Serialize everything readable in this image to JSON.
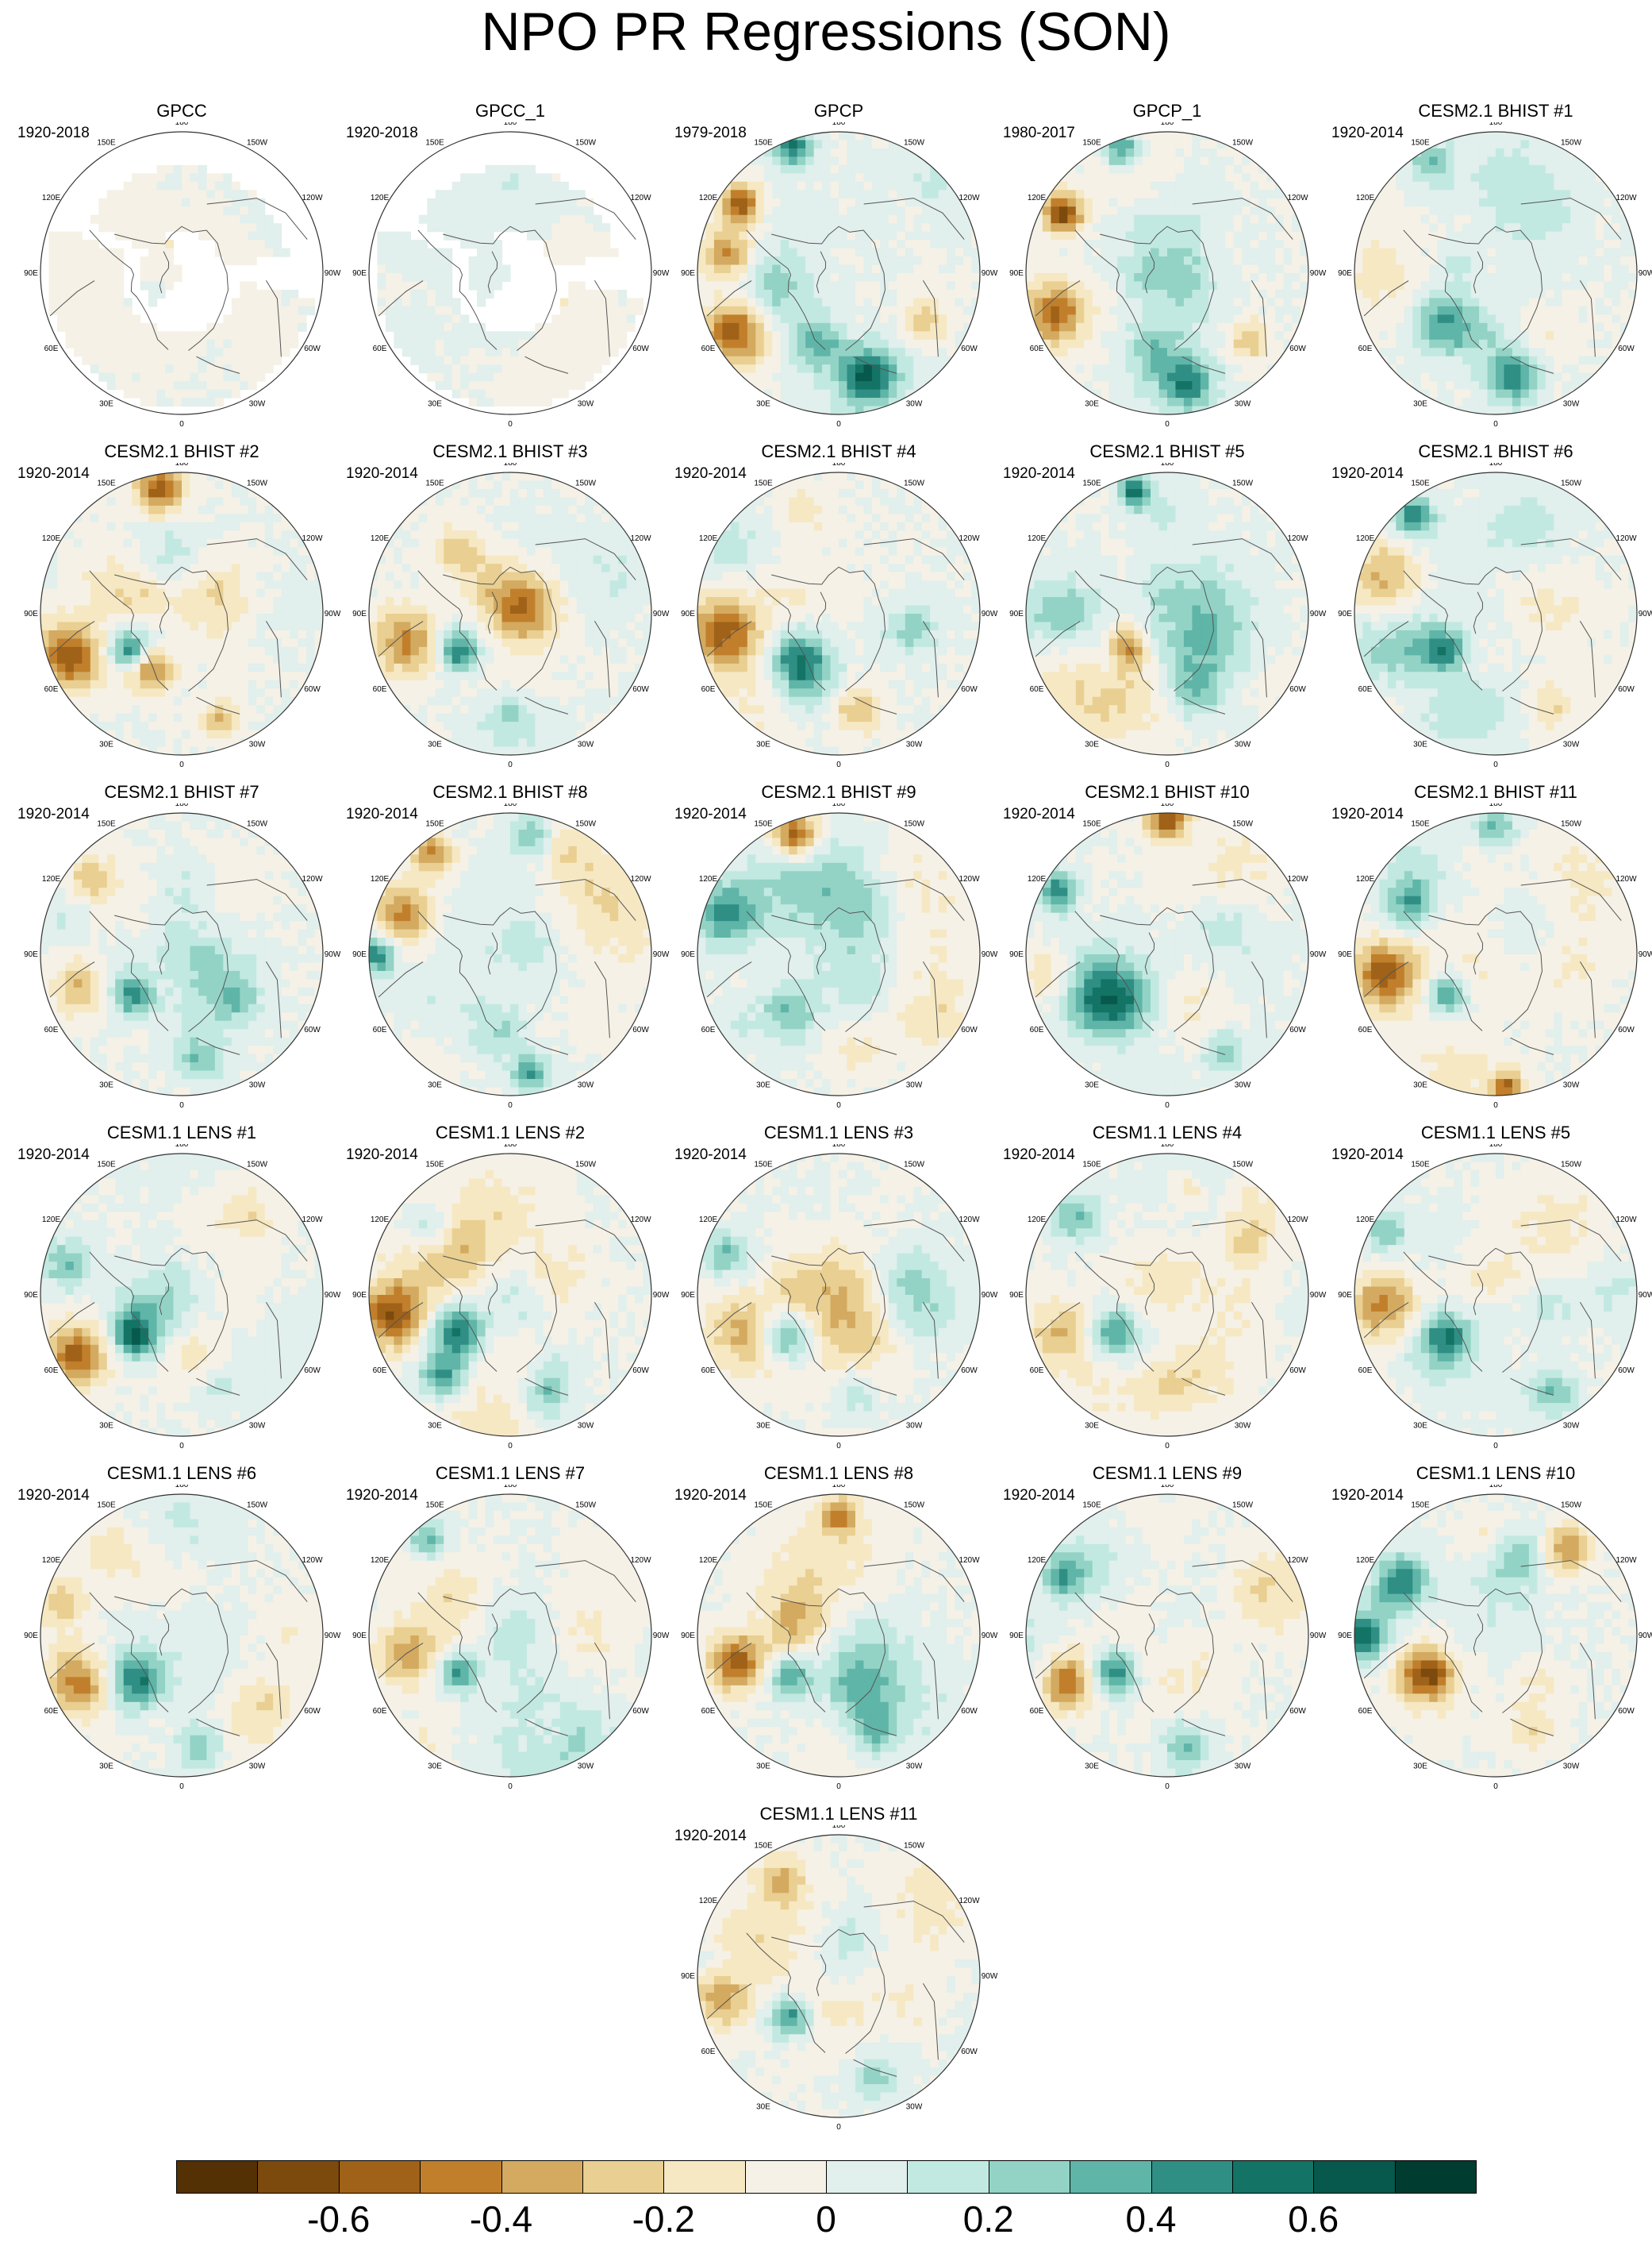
{
  "title": "NPO PR Regressions (SON)",
  "panels": [
    {
      "name": "GPCC",
      "period": "1920-2018",
      "mask": "gpcc",
      "seed": 11,
      "features": []
    },
    {
      "name": "GPCC_1",
      "period": "1920-2018",
      "mask": "gpcc",
      "seed": 12,
      "features": []
    },
    {
      "name": "GPCP",
      "period": "1979-2018",
      "mask": "none",
      "seed": 13,
      "features": [
        {
          "ang": -120,
          "rad": 0.85,
          "size": 0.16,
          "val": -0.55
        },
        {
          "ang": -80,
          "rad": 0.8,
          "size": 0.12,
          "val": -0.45
        },
        {
          "ang": -55,
          "rad": 0.85,
          "size": 0.1,
          "val": -0.6
        },
        {
          "ang": -20,
          "rad": 0.95,
          "size": 0.1,
          "val": 0.5
        },
        {
          "ang": 165,
          "rad": 0.75,
          "size": 0.12,
          "val": 0.45
        },
        {
          "ang": 120,
          "rad": 0.7,
          "size": 0.1,
          "val": -0.3
        },
        {
          "ang": -160,
          "rad": 0.5,
          "size": 0.15,
          "val": 0.25
        }
      ]
    },
    {
      "name": "GPCP_1",
      "period": "1980-2017",
      "mask": "none",
      "seed": 14,
      "features": [
        {
          "ang": -110,
          "rad": 0.85,
          "size": 0.16,
          "val": -0.5
        },
        {
          "ang": -60,
          "rad": 0.85,
          "size": 0.1,
          "val": -0.65
        },
        {
          "ang": -20,
          "rad": 0.95,
          "size": 0.1,
          "val": 0.5
        },
        {
          "ang": 170,
          "rad": 0.8,
          "size": 0.12,
          "val": 0.4
        },
        {
          "ang": 130,
          "rad": 0.75,
          "size": 0.1,
          "val": -0.3
        },
        {
          "ang": -170,
          "rad": 0.55,
          "size": 0.14,
          "val": 0.2
        }
      ]
    },
    {
      "name": "CESM2.1 BHIST #1",
      "period": "1920-2014",
      "mask": "none",
      "seed": 15,
      "features": [
        {
          "ang": -135,
          "rad": 0.5,
          "size": 0.16,
          "val": 0.4
        },
        {
          "ang": 170,
          "rad": 0.75,
          "size": 0.14,
          "val": 0.45
        },
        {
          "ang": -90,
          "rad": 0.8,
          "size": 0.2,
          "val": -0.15
        },
        {
          "ang": -30,
          "rad": 0.9,
          "size": 0.1,
          "val": 0.3
        }
      ]
    },
    {
      "name": "CESM2.1 BHIST #2",
      "period": "1920-2014",
      "mask": "none",
      "seed": 21,
      "features": [
        {
          "ang": -110,
          "rad": 0.85,
          "size": 0.16,
          "val": -0.5
        },
        {
          "ang": -150,
          "rad": 0.45,
          "size": 0.12,
          "val": -0.5
        },
        {
          "ang": -125,
          "rad": 0.45,
          "size": 0.1,
          "val": 0.5
        },
        {
          "ang": -10,
          "rad": 0.9,
          "size": 0.12,
          "val": -0.55
        },
        {
          "ang": 160,
          "rad": 0.8,
          "size": 0.1,
          "val": -0.3
        }
      ]
    },
    {
      "name": "CESM2.1 BHIST #3",
      "period": "1920-2014",
      "mask": "none",
      "seed": 22,
      "features": [
        {
          "ang": -105,
          "rad": 0.75,
          "size": 0.18,
          "val": -0.45
        },
        {
          "ang": -125,
          "rad": 0.45,
          "size": 0.1,
          "val": 0.5
        },
        {
          "ang": -40,
          "rad": 0.6,
          "size": 0.12,
          "val": -0.25
        },
        {
          "ang": 180,
          "rad": 0.7,
          "size": 0.1,
          "val": 0.2
        }
      ]
    },
    {
      "name": "CESM2.1 BHIST #4",
      "period": "1920-2014",
      "mask": "none",
      "seed": 23,
      "features": [
        {
          "ang": -100,
          "rad": 0.85,
          "size": 0.2,
          "val": -0.4
        },
        {
          "ang": -140,
          "rad": 0.45,
          "size": 0.15,
          "val": 0.5
        },
        {
          "ang": 170,
          "rad": 0.7,
          "size": 0.12,
          "val": -0.3
        },
        {
          "ang": 100,
          "rad": 0.55,
          "size": 0.12,
          "val": 0.25
        }
      ]
    },
    {
      "name": "CESM2.1 BHIST #5",
      "period": "1920-2014",
      "mask": "none",
      "seed": 24,
      "features": [
        {
          "ang": -90,
          "rad": 0.75,
          "size": 0.18,
          "val": 0.3
        },
        {
          "ang": -130,
          "rad": 0.35,
          "size": 0.1,
          "val": -0.45
        },
        {
          "ang": -15,
          "rad": 0.9,
          "size": 0.08,
          "val": 0.55
        },
        {
          "ang": 160,
          "rad": 0.6,
          "size": 0.12,
          "val": 0.25
        }
      ]
    },
    {
      "name": "CESM2.1 BHIST #6",
      "period": "1920-2014",
      "mask": "none",
      "seed": 25,
      "features": [
        {
          "ang": -70,
          "rad": 0.8,
          "size": 0.2,
          "val": -0.45
        },
        {
          "ang": -125,
          "rad": 0.45,
          "size": 0.1,
          "val": 0.45
        },
        {
          "ang": -40,
          "rad": 0.9,
          "size": 0.1,
          "val": 0.45
        },
        {
          "ang": 150,
          "rad": 0.75,
          "size": 0.12,
          "val": -0.2
        }
      ]
    },
    {
      "name": "CESM2.1 BHIST #7",
      "period": "1920-2014",
      "mask": "none",
      "seed": 31,
      "features": [
        {
          "ang": -110,
          "rad": 0.75,
          "size": 0.15,
          "val": -0.3
        },
        {
          "ang": -130,
          "rad": 0.45,
          "size": 0.1,
          "val": 0.45
        },
        {
          "ang": -50,
          "rad": 0.85,
          "size": 0.1,
          "val": -0.25
        },
        {
          "ang": 170,
          "rad": 0.75,
          "size": 0.12,
          "val": 0.3
        },
        {
          "ang": 130,
          "rad": 0.5,
          "size": 0.1,
          "val": 0.2
        }
      ]
    },
    {
      "name": "CESM2.1 BHIST #8",
      "period": "1920-2014",
      "mask": "none",
      "seed": 32,
      "features": [
        {
          "ang": -70,
          "rad": 0.8,
          "size": 0.15,
          "val": -0.45
        },
        {
          "ang": -35,
          "rad": 0.9,
          "size": 0.12,
          "val": -0.6
        },
        {
          "ang": -90,
          "rad": 0.95,
          "size": 0.1,
          "val": 0.5
        },
        {
          "ang": -170,
          "rad": 0.55,
          "size": 0.14,
          "val": 0.2
        },
        {
          "ang": 170,
          "rad": 0.85,
          "size": 0.1,
          "val": 0.4
        },
        {
          "ang": 10,
          "rad": 0.85,
          "size": 0.1,
          "val": 0.3
        }
      ]
    },
    {
      "name": "CESM2.1 BHIST #9",
      "period": "1920-2014",
      "mask": "none",
      "seed": 33,
      "features": [
        {
          "ang": -20,
          "rad": 0.9,
          "size": 0.12,
          "val": -0.6
        },
        {
          "ang": -70,
          "rad": 0.85,
          "size": 0.15,
          "val": 0.45
        },
        {
          "ang": -140,
          "rad": 0.55,
          "size": 0.14,
          "val": 0.3
        },
        {
          "ang": 170,
          "rad": 0.7,
          "size": 0.12,
          "val": -0.15
        }
      ]
    },
    {
      "name": "CESM2.1 BHIST #10",
      "period": "1920-2014",
      "mask": "none",
      "seed": 34,
      "features": [
        {
          "ang": -125,
          "rad": 0.55,
          "size": 0.18,
          "val": 0.55
        },
        {
          "ang": -100,
          "rad": 0.85,
          "size": 0.12,
          "val": -0.2
        },
        {
          "ang": 0,
          "rad": 0.95,
          "size": 0.1,
          "val": -0.6
        },
        {
          "ang": -60,
          "rad": 0.9,
          "size": 0.1,
          "val": 0.45
        },
        {
          "ang": 150,
          "rad": 0.8,
          "size": 0.12,
          "val": 0.3
        }
      ]
    },
    {
      "name": "CESM2.1 BHIST #11",
      "period": "1920-2014",
      "mask": "none",
      "seed": 35,
      "features": [
        {
          "ang": -100,
          "rad": 0.8,
          "size": 0.16,
          "val": -0.55
        },
        {
          "ang": -130,
          "rad": 0.45,
          "size": 0.1,
          "val": 0.45
        },
        {
          "ang": -60,
          "rad": 0.7,
          "size": 0.12,
          "val": 0.35
        },
        {
          "ang": 175,
          "rad": 0.95,
          "size": 0.08,
          "val": -0.5
        },
        {
          "ang": 0,
          "rad": 0.9,
          "size": 0.1,
          "val": 0.3
        }
      ]
    },
    {
      "name": "CESM1.1 LENS #1",
      "period": "1920-2014",
      "mask": "none",
      "seed": 41,
      "features": [
        {
          "ang": -120,
          "rad": 0.85,
          "size": 0.15,
          "val": -0.55
        },
        {
          "ang": -130,
          "rad": 0.45,
          "size": 0.1,
          "val": 0.5
        },
        {
          "ang": -75,
          "rad": 0.85,
          "size": 0.12,
          "val": 0.3
        },
        {
          "ang": 160,
          "rad": 0.7,
          "size": 0.12,
          "val": 0.2
        }
      ]
    },
    {
      "name": "CESM1.1 LENS #2",
      "period": "1920-2014",
      "mask": "none",
      "seed": 42,
      "features": [
        {
          "ang": -100,
          "rad": 0.85,
          "size": 0.16,
          "val": -0.6
        },
        {
          "ang": -125,
          "rad": 0.45,
          "size": 0.14,
          "val": 0.55
        },
        {
          "ang": -140,
          "rad": 0.75,
          "size": 0.12,
          "val": 0.4
        },
        {
          "ang": -50,
          "rad": 0.75,
          "size": 0.12,
          "val": 0.3
        },
        {
          "ang": 160,
          "rad": 0.75,
          "size": 0.12,
          "val": 0.3
        }
      ]
    },
    {
      "name": "CESM1.1 LENS #3",
      "period": "1920-2014",
      "mask": "none",
      "seed": 43,
      "features": [
        {
          "ang": -110,
          "rad": 0.75,
          "size": 0.18,
          "val": -0.3
        },
        {
          "ang": -130,
          "rad": 0.45,
          "size": 0.14,
          "val": 0.45
        },
        {
          "ang": -70,
          "rad": 0.85,
          "size": 0.12,
          "val": 0.3
        },
        {
          "ang": 170,
          "rad": 0.7,
          "size": 0.12,
          "val": 0.2
        }
      ]
    },
    {
      "name": "CESM1.1 LENS #4",
      "period": "1920-2014",
      "mask": "none",
      "seed": 44,
      "features": [
        {
          "ang": -110,
          "rad": 0.8,
          "size": 0.16,
          "val": -0.3
        },
        {
          "ang": -125,
          "rad": 0.45,
          "size": 0.12,
          "val": 0.45
        },
        {
          "ang": -50,
          "rad": 0.85,
          "size": 0.12,
          "val": 0.3
        },
        {
          "ang": 10,
          "rad": 0.75,
          "size": 0.1,
          "val": -0.2
        }
      ]
    },
    {
      "name": "CESM1.1 LENS #5",
      "period": "1920-2014",
      "mask": "none",
      "seed": 45,
      "features": [
        {
          "ang": -95,
          "rad": 0.85,
          "size": 0.16,
          "val": -0.35
        },
        {
          "ang": -130,
          "rad": 0.45,
          "size": 0.12,
          "val": 0.5
        },
        {
          "ang": -60,
          "rad": 0.9,
          "size": 0.1,
          "val": 0.3
        },
        {
          "ang": 150,
          "rad": 0.8,
          "size": 0.12,
          "val": 0.3
        }
      ]
    },
    {
      "name": "CESM1.1 LENS #6",
      "period": "1920-2014",
      "mask": "none",
      "seed": 51,
      "features": [
        {
          "ang": -115,
          "rad": 0.8,
          "size": 0.16,
          "val": -0.45
        },
        {
          "ang": -135,
          "rad": 0.45,
          "size": 0.14,
          "val": 0.55
        },
        {
          "ang": 170,
          "rad": 0.8,
          "size": 0.12,
          "val": 0.35
        },
        {
          "ang": -40,
          "rad": 0.8,
          "size": 0.12,
          "val": -0.15
        }
      ]
    },
    {
      "name": "CESM1.1 LENS #7",
      "period": "1920-2014",
      "mask": "none",
      "seed": 52,
      "features": [
        {
          "ang": -100,
          "rad": 0.75,
          "size": 0.16,
          "val": -0.35
        },
        {
          "ang": -125,
          "rad": 0.45,
          "size": 0.1,
          "val": 0.5
        },
        {
          "ang": -40,
          "rad": 0.9,
          "size": 0.1,
          "val": 0.35
        },
        {
          "ang": 160,
          "rad": 0.7,
          "size": 0.12,
          "val": -0.15
        }
      ]
    },
    {
      "name": "CESM1.1 LENS #8",
      "period": "1920-2014",
      "mask": "none",
      "seed": 53,
      "features": [
        {
          "ang": -105,
          "rad": 0.75,
          "size": 0.14,
          "val": -0.55
        },
        {
          "ang": -130,
          "rad": 0.45,
          "size": 0.1,
          "val": 0.4
        },
        {
          "ang": 0,
          "rad": 0.85,
          "size": 0.1,
          "val": -0.4
        },
        {
          "ang": 160,
          "rad": 0.75,
          "size": 0.12,
          "val": 0.3
        }
      ]
    },
    {
      "name": "CESM1.1 LENS #9",
      "period": "1920-2014",
      "mask": "none",
      "seed": 54,
      "features": [
        {
          "ang": -115,
          "rad": 0.8,
          "size": 0.14,
          "val": -0.55
        },
        {
          "ang": -125,
          "rad": 0.45,
          "size": 0.12,
          "val": 0.55
        },
        {
          "ang": -60,
          "rad": 0.85,
          "size": 0.1,
          "val": 0.35
        },
        {
          "ang": 170,
          "rad": 0.8,
          "size": 0.12,
          "val": 0.3
        }
      ]
    },
    {
      "name": "CESM1.1 LENS #10",
      "period": "1920-2014",
      "mask": "none",
      "seed": 55,
      "features": [
        {
          "ang": -90,
          "rad": 0.95,
          "size": 0.12,
          "val": 0.6
        },
        {
          "ang": -120,
          "rad": 0.55,
          "size": 0.12,
          "val": -0.5
        },
        {
          "ang": -60,
          "rad": 0.75,
          "size": 0.14,
          "val": 0.35
        },
        {
          "ang": 40,
          "rad": 0.8,
          "size": 0.12,
          "val": -0.4
        },
        {
          "ang": 160,
          "rad": 0.7,
          "size": 0.12,
          "val": -0.2
        }
      ]
    },
    {
      "name": "CESM1.1 LENS #11",
      "period": "1920-2014",
      "mask": "none",
      "seed": 61,
      "features": [
        {
          "ang": -100,
          "rad": 0.85,
          "size": 0.15,
          "val": -0.45
        },
        {
          "ang": -130,
          "rad": 0.45,
          "size": 0.1,
          "val": 0.45
        },
        {
          "ang": -30,
          "rad": 0.8,
          "size": 0.12,
          "val": -0.25
        },
        {
          "ang": 160,
          "rad": 0.75,
          "size": 0.12,
          "val": 0.25
        }
      ]
    }
  ],
  "lon_labels": [
    "180",
    "150E",
    "120E",
    "90E",
    "60E",
    "30E",
    "0",
    "30W",
    "60W",
    "90W",
    "120W",
    "150W"
  ],
  "colorbar": {
    "colors": [
      "#543005",
      "#7c4a0d",
      "#a06218",
      "#c17f2c",
      "#d3aa60",
      "#e9cf91",
      "#f6e8c3",
      "#f5f1e6",
      "#e1efed",
      "#c2e9e1",
      "#93d3c6",
      "#5fb5a8",
      "#2f8f84",
      "#137465",
      "#06594c",
      "#003c30"
    ],
    "tick_labels": [
      "-0.6",
      "-0.4",
      "-0.2",
      "0",
      "0.2",
      "0.4",
      "0.6"
    ],
    "tick_values": [
      -0.6,
      -0.4,
      -0.2,
      0,
      0.2,
      0.4,
      0.6
    ],
    "range": [
      -0.8,
      0.8
    ]
  }
}
